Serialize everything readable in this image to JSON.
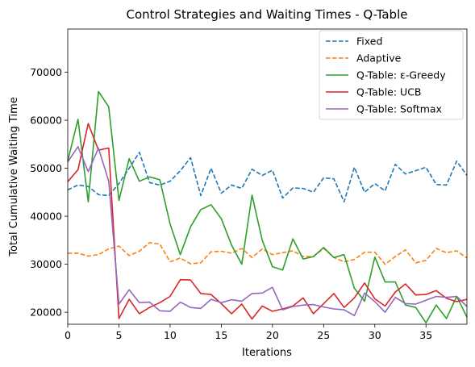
{
  "chart_data": {
    "type": "line",
    "title": "Control Strategies and Waiting Times - Q-Table",
    "xlabel": "Iterations",
    "ylabel": "Total Cumulative Waiting Time",
    "xlim": [
      0,
      39
    ],
    "ylim": [
      17500,
      79000
    ],
    "xticks": [
      0,
      5,
      10,
      15,
      20,
      25,
      30,
      35
    ],
    "yticks": [
      20000,
      30000,
      40000,
      50000,
      60000,
      70000
    ],
    "grid": false,
    "legend_position": "top-right",
    "x": [
      0,
      1,
      2,
      3,
      4,
      5,
      6,
      7,
      8,
      9,
      10,
      11,
      12,
      13,
      14,
      15,
      16,
      17,
      18,
      19,
      20,
      21,
      22,
      23,
      24,
      25,
      26,
      27,
      28,
      29,
      30,
      31,
      32,
      33,
      34,
      35,
      36,
      37,
      38,
      39
    ],
    "series": [
      {
        "name": "Fixed",
        "color": "#1f77b4",
        "dash": "dashed",
        "values": [
          45500,
          46500,
          46200,
          44500,
          44300,
          46800,
          50000,
          53300,
          47000,
          46500,
          47300,
          49500,
          52200,
          44300,
          50000,
          44800,
          46500,
          45800,
          49800,
          48500,
          49600,
          43800,
          45900,
          45800,
          45000,
          48000,
          47800,
          43000,
          50200,
          45000,
          46800,
          45300,
          50800,
          48800,
          49500,
          50200,
          46600,
          46500,
          51500,
          48500
        ]
      },
      {
        "name": "Adaptive",
        "color": "#ff7f0e",
        "dash": "dashed",
        "values": [
          32300,
          32300,
          31700,
          32000,
          33200,
          33800,
          31800,
          32700,
          34500,
          34200,
          30500,
          31300,
          30100,
          30300,
          32600,
          32700,
          32300,
          33300,
          31400,
          33200,
          32000,
          32400,
          32800,
          31600,
          31600,
          33300,
          31400,
          30500,
          31000,
          32500,
          32500,
          30000,
          31600,
          33000,
          30300,
          30800,
          33300,
          32400,
          32800,
          31300
        ]
      },
      {
        "name": "Q-Table: ε-Greedy",
        "color": "#2ca02c",
        "dash": "solid",
        "values": [
          51500,
          60200,
          43000,
          66000,
          62800,
          43300,
          52000,
          47300,
          48200,
          47600,
          38400,
          32000,
          37800,
          41400,
          42400,
          39500,
          34000,
          30000,
          44400,
          35000,
          29500,
          28800,
          35300,
          31100,
          31600,
          33500,
          31400,
          32000,
          25000,
          22300,
          31500,
          26300,
          26300,
          21500,
          21000,
          17800,
          21500,
          18700,
          23300,
          19000
        ]
      },
      {
        "name": "Q-Table: UCB",
        "color": "#d62728",
        "dash": "solid",
        "values": [
          47200,
          49700,
          59300,
          53800,
          54200,
          18700,
          22700,
          19700,
          21000,
          22000,
          23300,
          26800,
          26700,
          23900,
          23700,
          21800,
          19700,
          21700,
          18600,
          21300,
          20200,
          20700,
          21300,
          23000,
          19700,
          21800,
          23900,
          21000,
          23000,
          26100,
          22800,
          21300,
          24200,
          25900,
          23600,
          23700,
          24500,
          22900,
          22200,
          22700
        ]
      },
      {
        "name": "Q-Table: Softmax",
        "color": "#9467bd",
        "dash": "solid",
        "values": [
          51300,
          54500,
          49300,
          54200,
          47300,
          21700,
          24700,
          22000,
          22100,
          20300,
          20200,
          22100,
          21000,
          20800,
          22700,
          22000,
          22600,
          22300,
          23900,
          24000,
          25200,
          20500,
          21200,
          21500,
          21600,
          21100,
          20700,
          20500,
          19300,
          24000,
          22200,
          20000,
          23100,
          21800,
          21700,
          22500,
          23300,
          23100,
          23300,
          21200
        ]
      }
    ]
  }
}
